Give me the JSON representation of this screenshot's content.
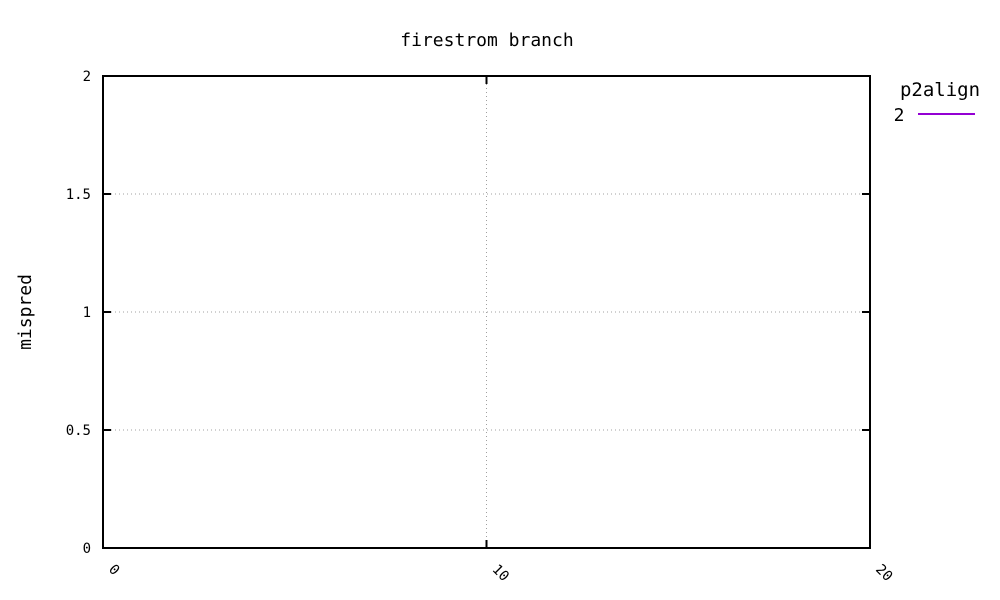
{
  "chart_data": {
    "type": "line",
    "title": "firestrom branch",
    "xlabel": "",
    "ylabel": "mispred",
    "xlim": [
      0,
      20
    ],
    "ylim": [
      0,
      2
    ],
    "x_ticks": [
      0,
      10,
      20
    ],
    "y_ticks": [
      0,
      0.5,
      1,
      1.5,
      2
    ],
    "x_tick_labels": [
      "0",
      "10",
      "20"
    ],
    "y_tick_labels": [
      "0",
      "0.5",
      "1",
      "1.5",
      "2"
    ],
    "grid": true,
    "legend": {
      "title": "p2align",
      "placement": "outside-top-right"
    },
    "series": [
      {
        "name": "2",
        "color": "#9400d3",
        "x": [],
        "y": []
      }
    ]
  }
}
